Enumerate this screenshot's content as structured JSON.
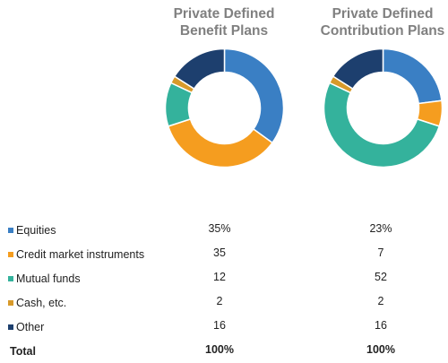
{
  "colors": {
    "Equities": "#3a7fc4",
    "Credit market instruments": "#f59d1f",
    "Mutual funds": "#34b29c",
    "Cash, etc.": "#d89a2a",
    "Other": "#1d3f6e"
  },
  "chart_data": [
    {
      "type": "pie",
      "title": "Private Defined Benefit Plans",
      "categories": [
        "Equities",
        "Credit market instruments",
        "Mutual funds",
        "Cash, etc.",
        "Other"
      ],
      "values": [
        35,
        35,
        12,
        2,
        16
      ],
      "value_labels": [
        "35%",
        "35",
        "12",
        "2",
        "16"
      ],
      "total_label": "100%"
    },
    {
      "type": "pie",
      "title": "Private Defined Contribution Plans",
      "categories": [
        "Equities",
        "Credit market instruments",
        "Mutual funds",
        "Cash, etc.",
        "Other"
      ],
      "values": [
        23,
        7,
        52,
        2,
        16
      ],
      "value_labels": [
        "23%",
        "7",
        "52",
        "2",
        "16"
      ],
      "total_label": "100%"
    }
  ],
  "table": {
    "total_label": "Total"
  }
}
